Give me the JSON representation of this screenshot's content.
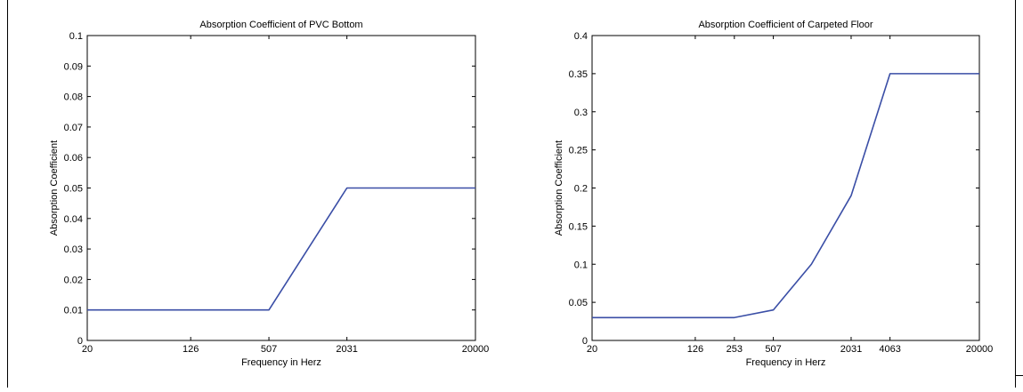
{
  "chart_data": [
    {
      "type": "line",
      "title": "Absorption Coefficient of PVC Bottom",
      "xlabel": "Frequency in Herz",
      "ylabel": "Absorption Coefficient",
      "xscale": "log",
      "xlim": [
        20,
        20000
      ],
      "ylim": [
        0,
        0.1
      ],
      "xticks": [
        20,
        126,
        507,
        2031,
        20000
      ],
      "xtick_labels": [
        "20",
        "126",
        "507",
        "2031",
        "20000"
      ],
      "yticks": [
        0,
        0.01,
        0.02,
        0.03,
        0.04,
        0.05,
        0.06,
        0.07,
        0.08,
        0.09,
        0.1
      ],
      "ytick_labels": [
        "0",
        "0.01",
        "0.02",
        "0.03",
        "0.04",
        "0.05",
        "0.06",
        "0.07",
        "0.08",
        "0.09",
        "0.1"
      ],
      "grid": false,
      "color": "#3a4ea6",
      "series": [
        {
          "x": [
            20,
            126,
            507,
            2031,
            20000
          ],
          "y": [
            0.01,
            0.01,
            0.01,
            0.05,
            0.05
          ]
        }
      ]
    },
    {
      "type": "line",
      "title": "Absorption Coefficient of Carpeted Floor",
      "xlabel": "Frequency in Herz",
      "ylabel": "Absorption Coefficient",
      "xscale": "log",
      "xlim": [
        20,
        20000
      ],
      "ylim": [
        0,
        0.4
      ],
      "xticks": [
        20,
        126,
        253,
        507,
        2031,
        4063,
        20000
      ],
      "xtick_labels": [
        "20",
        "126",
        "253",
        "507",
        "2031",
        "4063",
        "20000"
      ],
      "yticks": [
        0,
        0.05,
        0.1,
        0.15,
        0.2,
        0.25,
        0.3,
        0.35,
        0.4
      ],
      "ytick_labels": [
        "0",
        "0.05",
        "0.1",
        "0.15",
        "0.2",
        "0.25",
        "0.3",
        "0.35",
        "0.4"
      ],
      "grid": false,
      "color": "#3a4ea6",
      "series": [
        {
          "x": [
            20,
            126,
            253,
            507,
            1000,
            2031,
            4063,
            20000
          ],
          "y": [
            0.03,
            0.03,
            0.03,
            0.04,
            0.1,
            0.19,
            0.35,
            0.35
          ]
        }
      ]
    }
  ]
}
